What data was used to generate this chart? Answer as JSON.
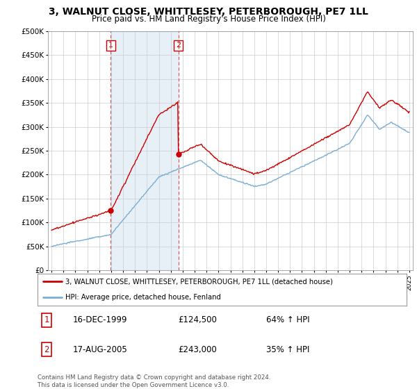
{
  "title": "3, WALNUT CLOSE, WHITTLESEY, PETERBOROUGH, PE7 1LL",
  "subtitle": "Price paid vs. HM Land Registry's House Price Index (HPI)",
  "legend_line1": "3, WALNUT CLOSE, WHITTLESEY, PETERBOROUGH, PE7 1LL (detached house)",
  "legend_line2": "HPI: Average price, detached house, Fenland",
  "table_row1": [
    "1",
    "16-DEC-1999",
    "£124,500",
    "64% ↑ HPI"
  ],
  "table_row2": [
    "2",
    "17-AUG-2005",
    "£243,000",
    "35% ↑ HPI"
  ],
  "footnote": "Contains HM Land Registry data © Crown copyright and database right 2024.\nThis data is licensed under the Open Government Licence v3.0.",
  "ylim": [
    0,
    500000
  ],
  "yticks": [
    0,
    50000,
    100000,
    150000,
    200000,
    250000,
    300000,
    350000,
    400000,
    450000,
    500000
  ],
  "red_color": "#cc0000",
  "blue_color": "#7aadd4",
  "shade_color": "#ddeeff",
  "grid_color": "#cccccc",
  "sale1_year": 1999.96,
  "sale1_price": 124500,
  "sale2_year": 2005.63,
  "sale2_price": 243000,
  "xlim_left": 1994.7,
  "xlim_right": 2025.3
}
